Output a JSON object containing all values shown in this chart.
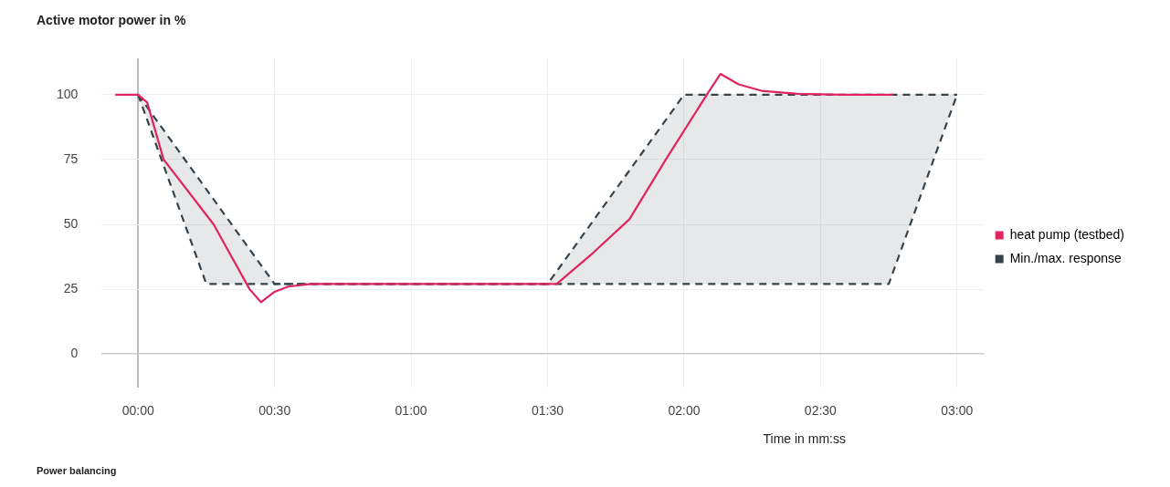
{
  "chart_data": {
    "type": "line",
    "ylabel": "Active motor power in %",
    "xlabel": "Time in mm:ss",
    "annotations": [
      "Power balancing"
    ],
    "xlim": [
      -8,
      186
    ],
    "ylim": [
      -13,
      114
    ],
    "xticks": [
      {
        "value": 0,
        "label": "00:00"
      },
      {
        "value": 30,
        "label": "00:30"
      },
      {
        "value": 60,
        "label": "01:00"
      },
      {
        "value": 90,
        "label": "01:30"
      },
      {
        "value": 120,
        "label": "02:00"
      },
      {
        "value": 150,
        "label": "02:30"
      },
      {
        "value": 180,
        "label": "03:00"
      }
    ],
    "yticks": [
      0,
      25,
      50,
      75,
      100
    ],
    "grid": true,
    "legend": "right",
    "marker": "none",
    "series": [
      {
        "name": "heat pump (testbed)",
        "color": "#e0245e",
        "line_style": "solid",
        "x": [
          -5,
          0,
          2,
          5.6,
          16.6,
          24.5,
          27,
          30,
          33,
          38,
          60,
          90,
          92,
          96,
          100,
          108,
          116,
          125,
          128,
          132,
          137,
          145,
          155,
          166
        ],
        "values": [
          100,
          100,
          97,
          75,
          50,
          25,
          20,
          24,
          26,
          27,
          27,
          27,
          27,
          33,
          39,
          52,
          75,
          100,
          108,
          104,
          101.5,
          100.3,
          100,
          100
        ]
      },
      {
        "name": "Min./max. response",
        "color": "#37434a",
        "line_style": "dashed",
        "x": [
          0,
          15,
          30,
          90,
          120,
          165,
          180
        ],
        "values": [
          100,
          63.5,
          27,
          27,
          100,
          100,
          100
        ],
        "lower": [
          100,
          27,
          27,
          27,
          27,
          27,
          100
        ],
        "upper": [
          100,
          63.5,
          27,
          27,
          100,
          100,
          100
        ]
      },
      {
        "color": "#37434a",
        "line_style": "dashed",
        "x": [
          0,
          15,
          165,
          180
        ],
        "values": [
          100,
          27,
          27,
          100
        ]
      }
    ]
  }
}
